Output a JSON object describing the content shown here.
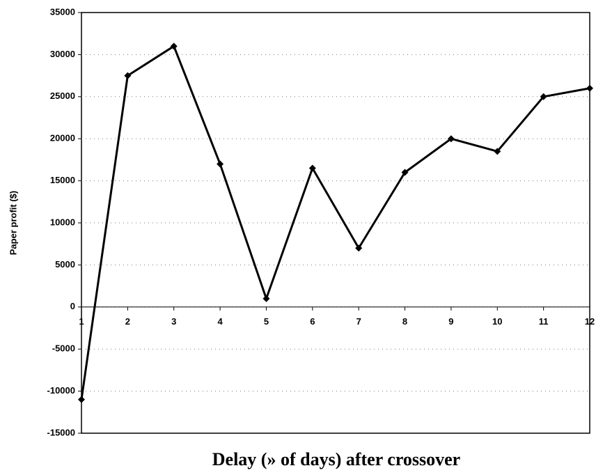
{
  "chart_data": {
    "type": "line",
    "x_label": "Delay (» of days) after crossover",
    "y_label": "Paper profit ($)",
    "x": [
      1,
      2,
      3,
      4,
      5,
      6,
      7,
      8,
      9,
      10,
      11,
      12
    ],
    "series": [
      {
        "name": "Paper profit",
        "color": "#000000",
        "values": [
          -11000,
          27500,
          31000,
          17000,
          1000,
          16500,
          7000,
          16000,
          20000,
          18500,
          25000,
          26000
        ]
      }
    ],
    "xlim": [
      1,
      12
    ],
    "xticks": [
      1,
      2,
      3,
      4,
      5,
      6,
      7,
      8,
      9,
      10,
      11,
      12
    ],
    "ylim": [
      -15000,
      35000
    ],
    "yticks": [
      -15000,
      -10000,
      -5000,
      0,
      5000,
      10000,
      15000,
      20000,
      25000,
      30000,
      35000
    ],
    "grid": true
  }
}
